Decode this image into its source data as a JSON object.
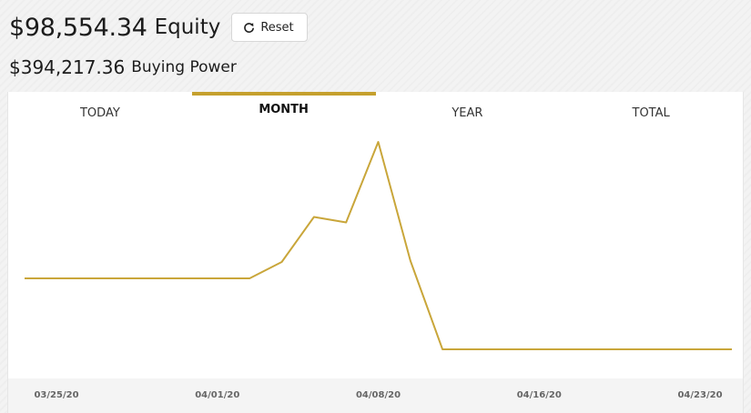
{
  "account": {
    "equity_value": "$98,554.34",
    "equity_label": "Equity",
    "buying_power_value": "$394,217.36",
    "buying_power_label": "Buying Power"
  },
  "reset_button": {
    "label": "Reset",
    "icon": "refresh-icon"
  },
  "tabs": [
    {
      "label": "TODAY",
      "active": false
    },
    {
      "label": "MONTH",
      "active": true
    },
    {
      "label": "YEAR",
      "active": false
    },
    {
      "label": "TOTAL",
      "active": false
    }
  ],
  "colors": {
    "accent": "#c5a02e",
    "line": "#c9a63a"
  },
  "chart_data": {
    "type": "line",
    "x_tick_labels": [
      "03/25/20",
      "04/01/20",
      "04/08/20",
      "04/16/20",
      "04/23/20"
    ],
    "series": [
      {
        "values": [
          0,
          0,
          0,
          0,
          0,
          0,
          0,
          0,
          0.12,
          0.45,
          0.41,
          1.0,
          0.13,
          -0.52,
          -0.52,
          -0.52,
          -0.52,
          -0.52,
          -0.52,
          -0.52,
          -0.52,
          -0.52,
          -0.52
        ]
      }
    ],
    "grid": false,
    "legend": "none"
  }
}
